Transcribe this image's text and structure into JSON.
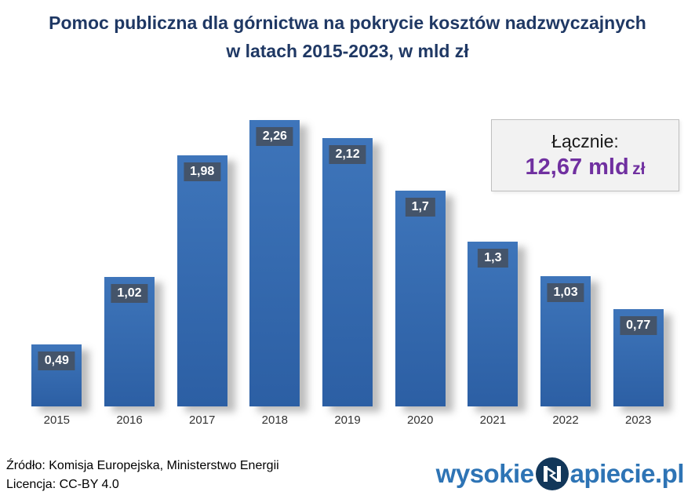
{
  "title": {
    "line1": "Pomoc publiczna dla górnictwa na pokrycie kosztów nadzwyczajnych",
    "line2": "w latach 2015-2023, w mld zł"
  },
  "chart_data": {
    "type": "bar",
    "title": "Pomoc publiczna dla górnictwa na pokrycie kosztów nadzwyczajnych w latach 2015-2023, w mld zł",
    "categories": [
      "2015",
      "2016",
      "2017",
      "2018",
      "2019",
      "2020",
      "2021",
      "2022",
      "2023"
    ],
    "values": [
      0.49,
      1.02,
      1.98,
      2.26,
      2.12,
      1.7,
      1.3,
      1.03,
      0.77
    ],
    "value_labels": [
      "0,49",
      "1,02",
      "1,98",
      "2,26",
      "2,12",
      "1,7",
      "1,3",
      "1,03",
      "0,77"
    ],
    "xlabel": "",
    "ylabel": "mld zł",
    "ylim": [
      0,
      2.6
    ],
    "grid": false,
    "legend": "none",
    "bar_color_top": "#3e75ba",
    "bar_color_bottom": "#2c5fa4",
    "label_box_color": "#44546A",
    "label_text_color": "#ffffff"
  },
  "total_box": {
    "label": "Łącznie:",
    "value": "12,67 mld",
    "unit": "zł",
    "value_color": "#7030A0"
  },
  "footer": {
    "source": "Źródło: Komisja Europejska, Ministerstwo Energii",
    "license": "Licencja: CC-BY 4.0"
  },
  "logo": {
    "prefix": "wysokie",
    "suffix": "apiecie.pl",
    "icon": "lightning-n-icon",
    "text_color": "#2E74B5",
    "circle_color": "#12375A"
  }
}
